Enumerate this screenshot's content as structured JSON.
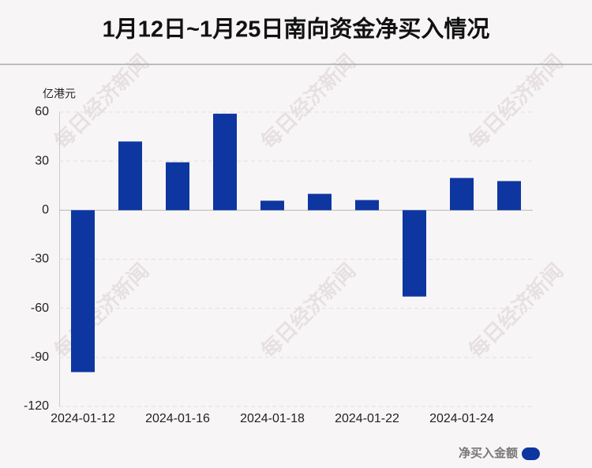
{
  "chart_data": {
    "type": "bar",
    "title": "1月12日~1月25日南向资金净买入情况",
    "y_unit": "亿港元",
    "watermark": "每日经济新闻",
    "categories": [
      "2024-01-12",
      null,
      "2024-01-16",
      null,
      "2024-01-18",
      null,
      "2024-01-22",
      null,
      "2024-01-24",
      null
    ],
    "series": [
      {
        "name": "净买入金额",
        "color": "#0d36a0",
        "values": [
          -99,
          42,
          29.3,
          59,
          5.8,
          10,
          6.2,
          -52.8,
          19.7,
          17.8
        ]
      }
    ],
    "ylim": [
      -120,
      60
    ],
    "yticks": [
      -120,
      -90,
      -60,
      -30,
      0,
      30,
      60
    ],
    "grid": true,
    "legend": "bottom-right"
  }
}
